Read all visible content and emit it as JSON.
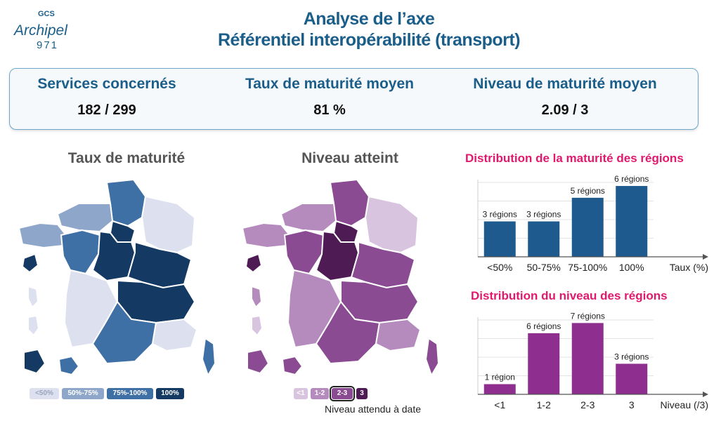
{
  "logo": {
    "line1": "GCS",
    "line2": "Archipel",
    "line3": "971"
  },
  "header": {
    "title_line1": "Analyse de l’axe",
    "title_line2": "Référentiel interopérabilité (transport)"
  },
  "kpis": [
    {
      "label": "Services concernés",
      "value": "182 / 299"
    },
    {
      "label": "Taux de maturité moyen",
      "value": "81 %"
    },
    {
      "label": "Niveau de maturité moyen",
      "value": "2.09 / 3"
    }
  ],
  "maps": {
    "maturite": {
      "title": "Taux de maturité",
      "legend": [
        "<50%",
        "50%-75%",
        "75%-100%",
        "100%"
      ],
      "colors": [
        "#dde1ef",
        "#8ea6c9",
        "#3e6fa5",
        "#143a63"
      ]
    },
    "niveau": {
      "title": "Niveau atteint",
      "legend": [
        "<1",
        "1-2",
        "2-3",
        "3"
      ],
      "colors": [
        "#d9c4df",
        "#b58bbd",
        "#8a4b93",
        "#4f1b55"
      ],
      "note": "Niveau attendu à date"
    }
  },
  "chart_data": [
    {
      "type": "bar",
      "title": "Distribution de la maturité des régions",
      "categories": [
        "<50%",
        "50-75%",
        "75-100%",
        "100%"
      ],
      "values": [
        3,
        3,
        5,
        6
      ],
      "data_labels": [
        "3 régions",
        "3 régions",
        "5 régions",
        "6 régions"
      ],
      "xlabel": "Taux (%)",
      "ylabel": "",
      "ylim": [
        0,
        6.3
      ],
      "color": "#1f5a8e",
      "grid": true
    },
    {
      "type": "bar",
      "title": "Distribution du niveau des régions",
      "categories": [
        "<1",
        "1-2",
        "2-3",
        "3"
      ],
      "values": [
        1,
        6,
        7,
        3
      ],
      "data_labels": [
        "1 région",
        "6 régions",
        "7 régions",
        "3 régions"
      ],
      "xlabel": "Niveau (/3)",
      "ylabel": "",
      "ylim": [
        0,
        7.3
      ],
      "color": "#8e2e8e",
      "grid": true
    }
  ]
}
